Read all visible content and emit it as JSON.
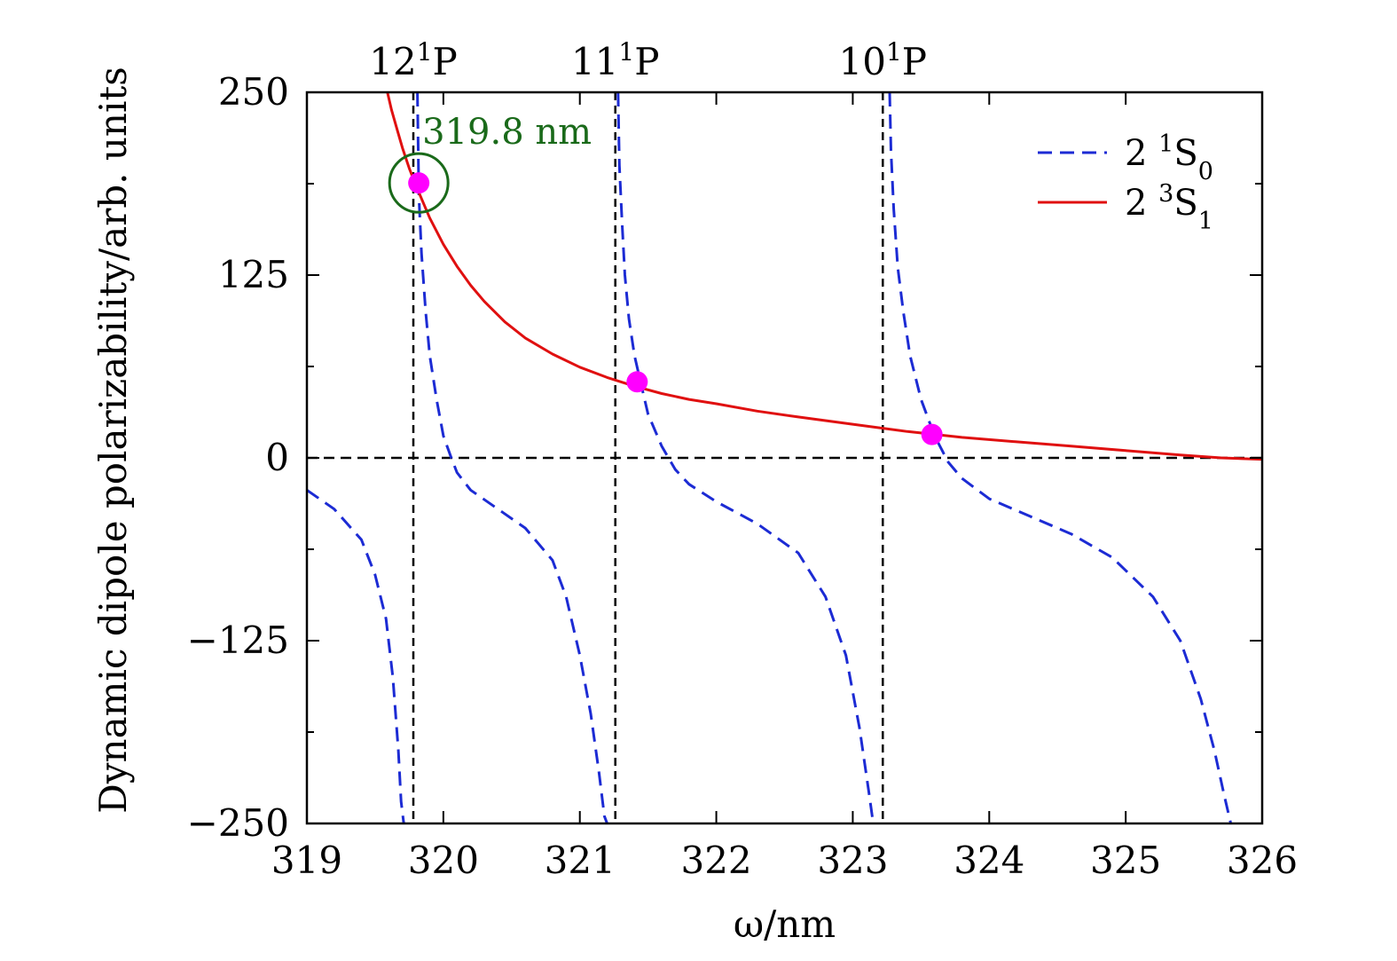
{
  "chart_data": {
    "type": "line",
    "title": "",
    "xlabel": "ω/nm",
    "ylabel": "Dynamic dipole polarizability/arb. units",
    "xlim": [
      319,
      326
    ],
    "ylim": [
      -250,
      250
    ],
    "x_ticks": [
      319,
      320,
      321,
      322,
      323,
      324,
      325,
      326
    ],
    "x_tick_labels": [
      "319",
      "320",
      "321",
      "322",
      "323",
      "324",
      "325",
      "326"
    ],
    "y_ticks": [
      -250,
      -125,
      0,
      125,
      250
    ],
    "y_tick_labels": [
      "−250",
      "−125",
      "0",
      "125",
      "250"
    ],
    "y_minor_ticks": [
      -187.5,
      -62.5,
      62.5,
      187.5
    ],
    "grid": false,
    "legend_position": "top-right",
    "resonances": [
      {
        "x": 319.78,
        "label": "12",
        "sup": "1",
        "suffix": "P"
      },
      {
        "x": 321.26,
        "label": "11",
        "sup": "1",
        "suffix": "P"
      },
      {
        "x": 323.22,
        "label": "10",
        "sup": "1",
        "suffix": "P"
      }
    ],
    "zero_line": 0,
    "series": [
      {
        "name_main": "2 ",
        "name_sup": "1",
        "name_rest": "S",
        "name_sub": "0",
        "style": "dashed",
        "color": "#1c2bd4",
        "segments": [
          {
            "x": [
              319.0,
              319.2,
              319.4,
              319.5,
              319.58,
              319.63,
              319.67,
              319.69,
              319.71,
              319.72
            ],
            "y": [
              -22,
              -35,
              -56,
              -80,
              -110,
              -150,
              -200,
              -235,
              -250,
              -250
            ]
          },
          {
            "x": [
              319.81,
              319.82,
              319.84,
              319.87,
              319.9,
              319.95,
              320.0,
              320.05,
              320.1,
              320.2,
              320.4,
              320.6,
              320.8,
              320.9,
              321.0,
              321.08,
              321.14,
              321.18,
              321.2
            ],
            "y": [
              250,
              180,
              140,
              100,
              70,
              40,
              15,
              2,
              -10,
              -22,
              -35,
              -48,
              -70,
              -95,
              -135,
              -175,
              -215,
              -245,
              -250
            ]
          },
          {
            "x": [
              321.28,
              321.29,
              321.31,
              321.33,
              321.36,
              321.4,
              321.45,
              321.5,
              321.6,
              321.7,
              321.8,
              322.0,
              322.3,
              322.6,
              322.8,
              322.95,
              323.05,
              323.12,
              323.15
            ],
            "y": [
              250,
              200,
              160,
              125,
              95,
              70,
              50,
              30,
              8,
              -8,
              -18,
              -30,
              -45,
              -65,
              -95,
              -135,
              -185,
              -230,
              -250
            ]
          },
          {
            "x": [
              323.27,
              323.28,
              323.3,
              323.33,
              323.37,
              323.42,
              323.5,
              323.6,
              323.7,
              323.8,
              324.0,
              324.3,
              324.6,
              324.9,
              325.2,
              325.4,
              325.55,
              325.65,
              325.72,
              325.77
            ],
            "y": [
              250,
              210,
              170,
              130,
              100,
              70,
              40,
              15,
              -3,
              -14,
              -28,
              -40,
              -52,
              -68,
              -95,
              -125,
              -165,
              -200,
              -230,
              -250
            ]
          }
        ]
      },
      {
        "name_main": "2 ",
        "name_sup": "3",
        "name_rest": "S",
        "name_sub": "1",
        "style": "solid",
        "color": "#e01010",
        "x": [
          319.59,
          319.62,
          319.66,
          319.7,
          319.75,
          319.8,
          319.85,
          319.9,
          320.0,
          320.1,
          320.2,
          320.3,
          320.45,
          320.6,
          320.8,
          321.0,
          321.2,
          321.4,
          321.6,
          321.8,
          322.0,
          322.3,
          322.6,
          323.0,
          323.4,
          323.8,
          324.2,
          324.6,
          325.0,
          325.4,
          325.7,
          326.0
        ],
        "y": [
          250,
          238,
          225,
          212,
          198,
          186,
          175,
          164,
          146,
          131,
          118,
          107,
          93,
          82,
          71,
          62,
          55,
          49,
          44,
          40,
          37,
          32,
          28,
          23,
          18,
          14,
          11,
          8,
          5,
          2,
          0,
          -1
        ]
      }
    ],
    "intersections": {
      "color": "#ff00ff",
      "x": [
        319.82,
        321.42,
        323.58
      ],
      "y": [
        188,
        52,
        16
      ]
    },
    "annotation": {
      "text": "319.8 nm",
      "color": "#1a6a1a",
      "x": 319.82,
      "y": 188
    }
  }
}
